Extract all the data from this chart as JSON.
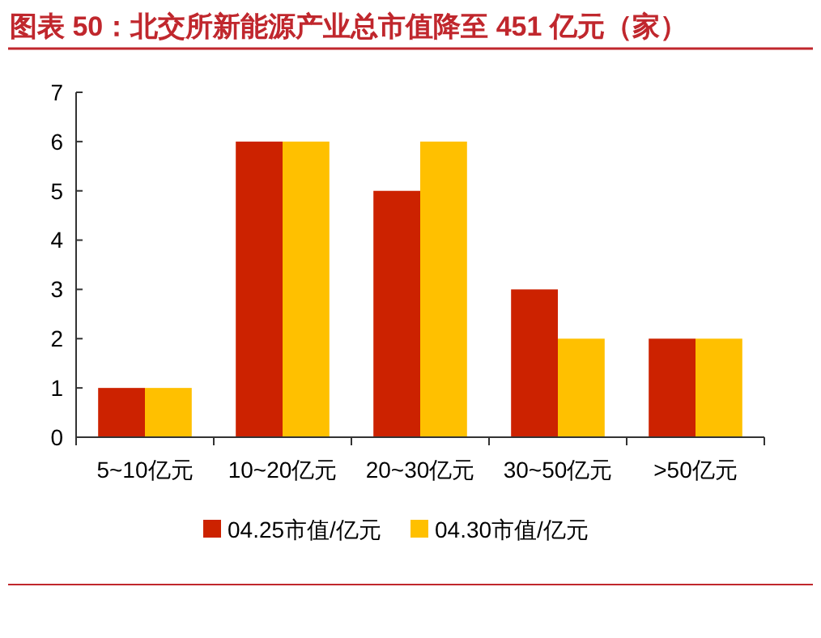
{
  "chart_data": {
    "type": "bar",
    "title": "图表 50：北交所新能源产业总市值降至 451 亿元（家）",
    "categories": [
      "5~10亿元",
      "10~20亿元",
      "20~30亿元",
      "30~50亿元",
      ">50亿元"
    ],
    "series": [
      {
        "name": "04.25市值/亿元",
        "color": "#cc2200",
        "values": [
          1,
          6,
          5,
          3,
          2
        ]
      },
      {
        "name": "04.30市值/亿元",
        "color": "#ffc000",
        "values": [
          1,
          6,
          6,
          2,
          2
        ]
      }
    ],
    "ylim": [
      0,
      7
    ],
    "yticks": [
      0,
      1,
      2,
      3,
      4,
      5,
      6,
      7
    ],
    "grid": false,
    "legend": "bottom"
  }
}
